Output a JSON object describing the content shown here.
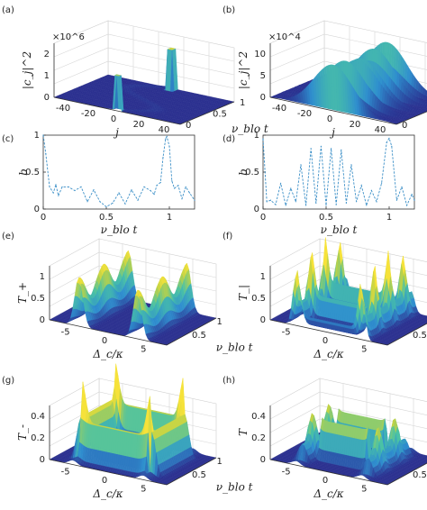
{
  "colors": {
    "surface_dark": "#2a2f8f",
    "surface_mid": "#2f8fcf",
    "surface_bright": "#f6e23a",
    "curve": "#3b8fc7"
  },
  "chart_data": [
    {
      "panel": "(a)",
      "type": "surface3d",
      "zlabel": "|c_j|^2",
      "zexp": "×10^6",
      "xlabel": "j",
      "ylabel": "ν_blo t",
      "xticks": [
        "-40",
        "-20",
        "0",
        "20",
        "40"
      ],
      "yticks": [
        "0",
        "0.5",
        "1"
      ],
      "zticks": [
        "0",
        "1",
        "2"
      ]
    },
    {
      "panel": "(b)",
      "type": "surface3d",
      "zlabel": "|c_j|^2",
      "zexp": "×10^4",
      "xlabel": "j",
      "ylabel": "ν_blo t",
      "xticks": [
        "-40",
        "-20",
        "0",
        "20",
        "40"
      ],
      "yticks": [
        "0",
        "0.5",
        "1"
      ],
      "zticks": [
        "0",
        "5",
        "10"
      ]
    },
    {
      "panel": "(c)",
      "type": "line",
      "xlabel": "ν_blo t",
      "ylabel": "b",
      "xticks": [
        "0",
        "0.5",
        "1"
      ],
      "yticks": [
        "0",
        "0.5",
        "1"
      ],
      "xlim": [
        0,
        1.2
      ],
      "ylim": [
        0,
        1
      ],
      "x": [
        0,
        0.02,
        0.05,
        0.08,
        0.1,
        0.12,
        0.15,
        0.2,
        0.25,
        0.3,
        0.35,
        0.4,
        0.45,
        0.5,
        0.55,
        0.6,
        0.65,
        0.7,
        0.75,
        0.8,
        0.85,
        0.88,
        0.9,
        0.93,
        0.95,
        0.97,
        0.98,
        1.0,
        1.02,
        1.04,
        1.07,
        1.1,
        1.13,
        1.16,
        1.2
      ],
      "y": [
        1.0,
        0.75,
        0.3,
        0.22,
        0.33,
        0.18,
        0.3,
        0.3,
        0.25,
        0.3,
        0.1,
        0.26,
        0.1,
        0.03,
        0.08,
        0.22,
        0.07,
        0.26,
        0.12,
        0.3,
        0.25,
        0.2,
        0.32,
        0.36,
        0.7,
        0.95,
        0.98,
        0.85,
        0.38,
        0.28,
        0.32,
        0.14,
        0.3,
        0.22,
        0.12
      ]
    },
    {
      "panel": "(d)",
      "type": "line",
      "xlabel": "ν_blo t",
      "ylabel": "b",
      "xticks": [
        "0",
        "0.5",
        "1"
      ],
      "yticks": [
        "0",
        "0.5",
        "1"
      ],
      "xlim": [
        0,
        1.2
      ],
      "ylim": [
        0,
        1
      ],
      "x": [
        0,
        0.03,
        0.06,
        0.1,
        0.14,
        0.18,
        0.22,
        0.26,
        0.3,
        0.34,
        0.38,
        0.42,
        0.46,
        0.5,
        0.54,
        0.58,
        0.62,
        0.66,
        0.7,
        0.74,
        0.78,
        0.82,
        0.86,
        0.9,
        0.94,
        0.98,
        1.0,
        1.02,
        1.06,
        1.1,
        1.14,
        1.18,
        1.2
      ],
      "y": [
        0.95,
        0.1,
        0.12,
        0.06,
        0.35,
        0.05,
        0.28,
        0.1,
        0.6,
        0.05,
        0.82,
        0.08,
        0.85,
        0.05,
        0.82,
        0.06,
        0.8,
        0.08,
        0.6,
        0.1,
        0.32,
        0.05,
        0.25,
        0.1,
        0.35,
        0.9,
        0.96,
        0.85,
        0.12,
        0.3,
        0.05,
        0.2,
        0.12
      ]
    },
    {
      "panel": "(e)",
      "type": "surface3d",
      "zlabel": "T_+",
      "xlabel": "Δ_c/κ",
      "ylabel": "ν_blo t",
      "xticks": [
        "-5",
        "0",
        "5"
      ],
      "yticks": [
        "0.5",
        "1"
      ],
      "zticks": [
        "0",
        "0.5",
        "1"
      ]
    },
    {
      "panel": "(f)",
      "type": "surface3d",
      "zlabel": "T_|",
      "xlabel": "Δ_c/κ",
      "ylabel": "ν_blo t",
      "xticks": [
        "-5",
        "0",
        "5"
      ],
      "yticks": [
        "0.5",
        "1"
      ],
      "zticks": [
        "0",
        "0.5",
        "1"
      ]
    },
    {
      "panel": "(g)",
      "type": "surface3d",
      "zlabel": "T_-",
      "xlabel": "Δ_c/κ",
      "ylabel": "ν_blo t",
      "xticks": [
        "-5",
        "0",
        "5"
      ],
      "yticks": [
        "0.5",
        "1"
      ],
      "zticks": [
        "0",
        "0.2",
        "0.4"
      ]
    },
    {
      "panel": "(h)",
      "type": "surface3d",
      "zlabel": "T",
      "xlabel": "Δ_c/κ",
      "ylabel": "ν_blo t",
      "xticks": [
        "-5",
        "0",
        "5"
      ],
      "yticks": [
        "0.5",
        "1"
      ],
      "zticks": [
        "0",
        "0.2",
        "0.4"
      ]
    }
  ]
}
